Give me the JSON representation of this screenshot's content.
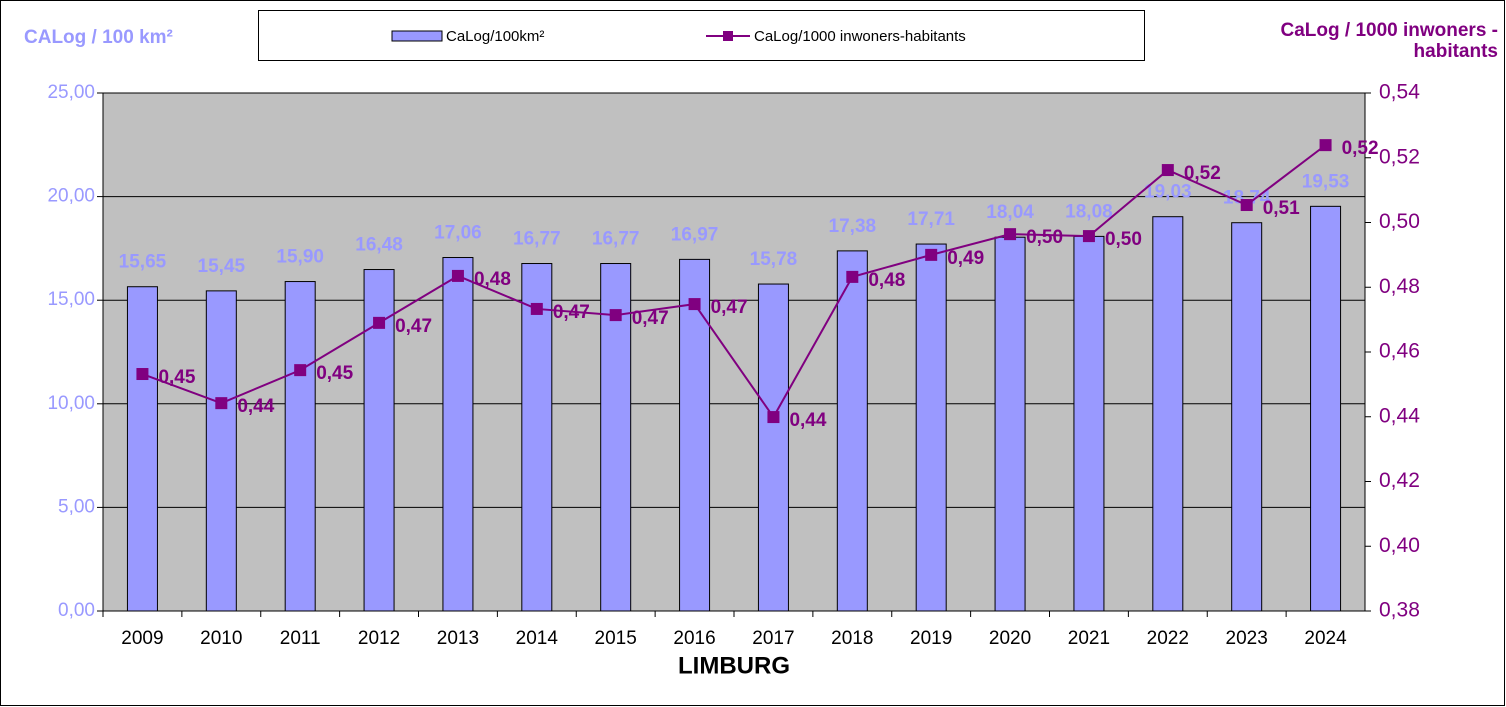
{
  "chart_data": {
    "type": "bar_line",
    "x_label": "LIMBURG",
    "y_label": "CALog / 100 km²",
    "y2_label": "CaLog / 1000 inwoners - habitants",
    "categories": [
      "2009",
      "2010",
      "2011",
      "2012",
      "2013",
      "2014",
      "2015",
      "2016",
      "2017",
      "2018",
      "2019",
      "2020",
      "2021",
      "2022",
      "2023",
      "2024"
    ],
    "series": [
      {
        "name": "CaLog/100km²",
        "type": "bar",
        "color": "#9999ff",
        "label_color": "#9999ff",
        "values": [
          15.65,
          15.45,
          15.9,
          16.48,
          17.06,
          16.77,
          16.77,
          16.97,
          15.78,
          17.38,
          17.71,
          18.04,
          18.08,
          19.03,
          18.74,
          19.53
        ],
        "value_labels": [
          "15,65",
          "15,45",
          "15,90",
          "16,48",
          "17,06",
          "16,77",
          "16,77",
          "16,97",
          "15,78",
          "17,38",
          "17,71",
          "18,04",
          "18,08",
          "19,03",
          "18,74",
          "19,53"
        ]
      },
      {
        "name": "CaLog/1000 inwoners-habitants",
        "type": "line",
        "axis": "y2",
        "color": "#800080",
        "label_color": "#800080",
        "values": [
          0.4532,
          0.4442,
          0.4544,
          0.469,
          0.4835,
          0.4733,
          0.4714,
          0.4748,
          0.4399,
          0.4832,
          0.49,
          0.4964,
          0.4958,
          0.5162,
          0.5054,
          0.5239
        ],
        "value_labels": [
          "0,45",
          "0,44",
          "0,45",
          "0,47",
          "0,48",
          "0,47",
          "0,47",
          "0,47",
          "0,44",
          "0,48",
          "0,49",
          "0,50",
          "0,50",
          "0,52",
          "0,51",
          "0,52"
        ]
      }
    ],
    "ylim": [
      0,
      25
    ],
    "yticks": [
      {
        "value": 0,
        "label": "0,00"
      },
      {
        "value": 5,
        "label": "5,00"
      },
      {
        "value": 10,
        "label": "10,00"
      },
      {
        "value": 15,
        "label": "15,00"
      },
      {
        "value": 20,
        "label": "20,00"
      },
      {
        "value": 25,
        "label": "25,00"
      }
    ],
    "y2lim": [
      0.38,
      0.54
    ],
    "y2ticks": [
      {
        "value": 0.38,
        "label": "0,38"
      },
      {
        "value": 0.4,
        "label": "0,40"
      },
      {
        "value": 0.42,
        "label": "0,42"
      },
      {
        "value": 0.44,
        "label": "0,44"
      },
      {
        "value": 0.46,
        "label": "0,46"
      },
      {
        "value": 0.48,
        "label": "0,48"
      },
      {
        "value": 0.5,
        "label": "0,50"
      },
      {
        "value": 0.52,
        "label": "0,52"
      },
      {
        "value": 0.54,
        "label": "0,54"
      }
    ],
    "grid": true,
    "background": "#c0c0c0",
    "legend": "top"
  }
}
